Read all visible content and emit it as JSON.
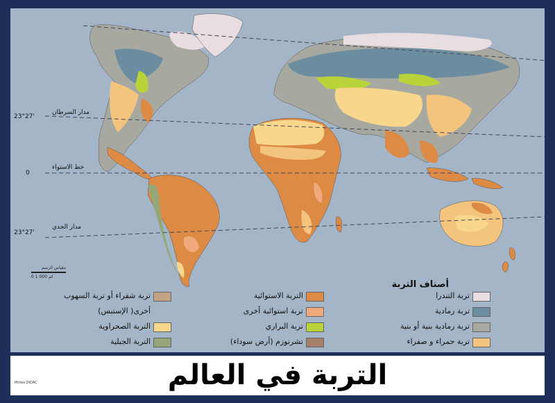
{
  "title": "التربة في العالم",
  "credit": "Mirlex DIDAC",
  "lines": {
    "cancer": {
      "label": "مدار السرطان",
      "deg": "23°27'"
    },
    "equator": {
      "label": "خط الاستواء",
      "deg": "0"
    },
    "capricorn": {
      "label": "مدار الجدي",
      "deg": "23°27'"
    }
  },
  "scale": {
    "label": "مقياس الرسم",
    "values": "0     1 000 كم"
  },
  "legend": {
    "title": "أصناف التربة",
    "items": [
      {
        "label": "تربة التندرا",
        "color": "#e8dde1"
      },
      {
        "label": "تربة رمادية",
        "color": "#6c8da0"
      },
      {
        "label": "تربة رمادية بنية أو بنية",
        "color": "#a7a9a0"
      },
      {
        "label": "تربة حمراء و صفراء",
        "color": "#f3c47e"
      },
      {
        "label": "التربة الاستوائية",
        "color": "#dd8a45"
      },
      {
        "label": "تربة استوائية أخرى",
        "color": "#f0a97a"
      },
      {
        "label": "تربة البراري",
        "color": "#b8d43a"
      },
      {
        "label": "تشرنوزم (أرض سوداء)",
        "color": "#a67f6a"
      },
      {
        "label": "تربة شقراء أو تربة السهوب",
        "color": "#c2a283"
      },
      {
        "label": "أخرى( الإستبس)",
        "color": ""
      },
      {
        "label": "التربة الصحراوية",
        "color": "#f8d78c"
      },
      {
        "label": "التربة الجبلية",
        "color": "#95a679"
      }
    ]
  }
}
